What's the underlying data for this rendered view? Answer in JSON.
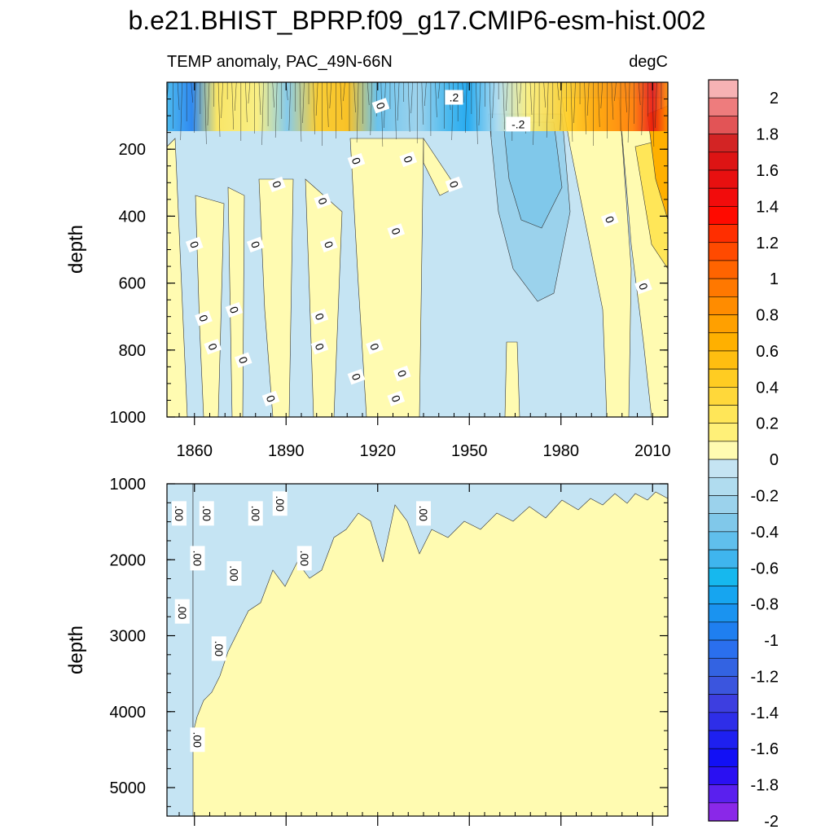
{
  "title": "b.e21.BHIST_BPRP.f09_g17.CMIP6-esm-hist.002",
  "chart_data": {
    "type": "heatmap",
    "title": "b.e21.BHIST_BPRP.f09_g17.CMIP6-esm-hist.002",
    "subtitle_left": "TEMP anomaly, PAC_49N-66N",
    "subtitle_right": "degC",
    "xlabel": "",
    "ylabel": "depth",
    "xlim": [
      1851,
      2015
    ],
    "x_ticks": [
      "1860",
      "1890",
      "1920",
      "1950",
      "1980",
      "2010"
    ],
    "panels": [
      {
        "name": "upper",
        "ylim": [
          0,
          1000
        ],
        "y_ticks": [
          "200",
          "400",
          "600",
          "800",
          "1000"
        ],
        "contour_labels": [
          {
            "text": "0",
            "x": 1921,
            "y": 70
          },
          {
            "text": ".2",
            "x": 1945,
            "y": 45
          },
          {
            "text": "-.2",
            "x": 1966,
            "y": 125
          },
          {
            "text": "0",
            "x": 1887,
            "y": 305
          },
          {
            "text": "0",
            "x": 1902,
            "y": 355
          },
          {
            "text": "0",
            "x": 1913,
            "y": 235
          },
          {
            "text": "0",
            "x": 1930,
            "y": 230
          },
          {
            "text": "0",
            "x": 1945,
            "y": 305
          },
          {
            "text": "0",
            "x": 1926,
            "y": 445
          },
          {
            "text": "0",
            "x": 1996,
            "y": 410
          },
          {
            "text": "0",
            "x": 1860,
            "y": 485
          },
          {
            "text": "0",
            "x": 1880,
            "y": 485
          },
          {
            "text": "0",
            "x": 1904,
            "y": 485
          },
          {
            "text": "0",
            "x": 1863,
            "y": 705
          },
          {
            "text": "0",
            "x": 1873,
            "y": 680
          },
          {
            "text": "0",
            "x": 1901,
            "y": 700
          },
          {
            "text": "0",
            "x": 1866,
            "y": 790
          },
          {
            "text": "0",
            "x": 1901,
            "y": 790
          },
          {
            "text": "0",
            "x": 1919,
            "y": 790
          },
          {
            "text": "0",
            "x": 1876,
            "y": 830
          },
          {
            "text": "0",
            "x": 1913,
            "y": 880
          },
          {
            "text": "0",
            "x": 1928,
            "y": 870
          },
          {
            "text": "0",
            "x": 1885,
            "y": 945
          },
          {
            "text": "0",
            "x": 1926,
            "y": 945
          },
          {
            "text": "0",
            "x": 2007,
            "y": 610
          }
        ]
      },
      {
        "name": "lower",
        "ylim": [
          1000,
          5375
        ],
        "y_ticks": [
          "1000",
          "2000",
          "3000",
          "4000",
          "5000"
        ],
        "contour_labels": [
          {
            "text": ".00",
            "x": 1855,
            "y": 1390
          },
          {
            "text": ".00",
            "x": 1864,
            "y": 1390
          },
          {
            "text": ".00",
            "x": 1880,
            "y": 1390
          },
          {
            "text": ".00",
            "x": 1888,
            "y": 1260
          },
          {
            "text": ".00",
            "x": 1935,
            "y": 1390
          },
          {
            "text": ".00",
            "x": 1861,
            "y": 1980
          },
          {
            "text": ".00",
            "x": 1896,
            "y": 1980
          },
          {
            "text": ".00",
            "x": 1873,
            "y": 2180
          },
          {
            "text": ".00",
            "x": 1856,
            "y": 2680
          },
          {
            "text": ".00",
            "x": 1868,
            "y": 3170
          },
          {
            "text": ".00",
            "x": 1861,
            "y": 4370
          }
        ]
      }
    ],
    "colorbar": {
      "labels": [
        "2",
        "1.8",
        "1.6",
        "1.4",
        "1.2",
        "1",
        "0.8",
        "0.6",
        "0.4",
        "0.2",
        "0",
        "-0.2",
        "-0.4",
        "-0.6",
        "-0.8",
        "-1",
        "-1.2",
        "-1.4",
        "-1.6",
        "-1.8",
        "-2"
      ],
      "colors": [
        "#f7b2b4",
        "#ee7c7d",
        "#e25456",
        "#d32424",
        "#dd1414",
        "#e81010",
        "#f20c0c",
        "#ff0a00",
        "#ff2e00",
        "#ff4a00",
        "#ff6400",
        "#ff7800",
        "#ff8c00",
        "#ffa000",
        "#ffb000",
        "#ffbe10",
        "#ffcc22",
        "#ffd83a",
        "#ffe658",
        "#fff078",
        "#fffbb1",
        "#c5e4f3",
        "#b0dcef",
        "#9bd2ec",
        "#80c8ea",
        "#60bfec",
        "#3fb5ee",
        "#16b8ee",
        "#16a5f0",
        "#1a93f0",
        "#1f7ff0",
        "#2a6fee",
        "#3363e2",
        "#3b55de",
        "#3d3ee0",
        "#2e2ee8",
        "#1e20f0",
        "#1210f5",
        "#2a10f2",
        "#5a20ee",
        "#8a28e8"
      ]
    },
    "units": "degC"
  }
}
